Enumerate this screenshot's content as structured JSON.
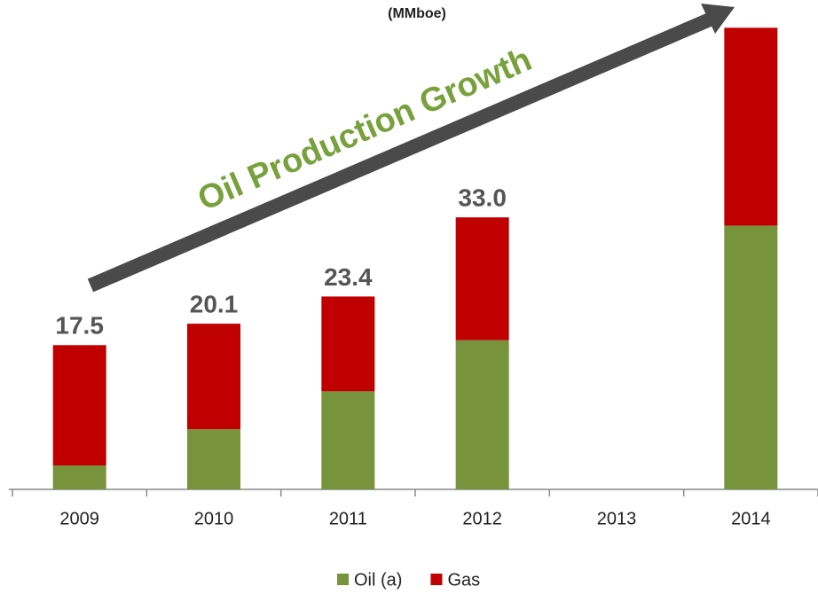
{
  "chart_data": {
    "type": "stacked_bar",
    "subtitle": "(MMboe)",
    "annotation": "Oil Production Growth",
    "categories": [
      "2009",
      "2010",
      "2011",
      "2012",
      "2013",
      "2014"
    ],
    "series": [
      {
        "name": "Oil (a)",
        "color": "#77933c",
        "values": [
          2.9,
          7.3,
          11.9,
          18.1,
          null,
          32
        ]
      },
      {
        "name": "Gas",
        "color": "#c00000",
        "values": [
          14.6,
          12.8,
          11.5,
          14.9,
          null,
          24
        ]
      }
    ],
    "totals": [
      17.5,
      20.1,
      23.4,
      33.0,
      null,
      null
    ],
    "total_labels": [
      "17.5",
      "20.1",
      "23.4",
      "33.0",
      null,
      null
    ],
    "ylim": [
      0,
      57
    ],
    "legend": "bottom"
  }
}
